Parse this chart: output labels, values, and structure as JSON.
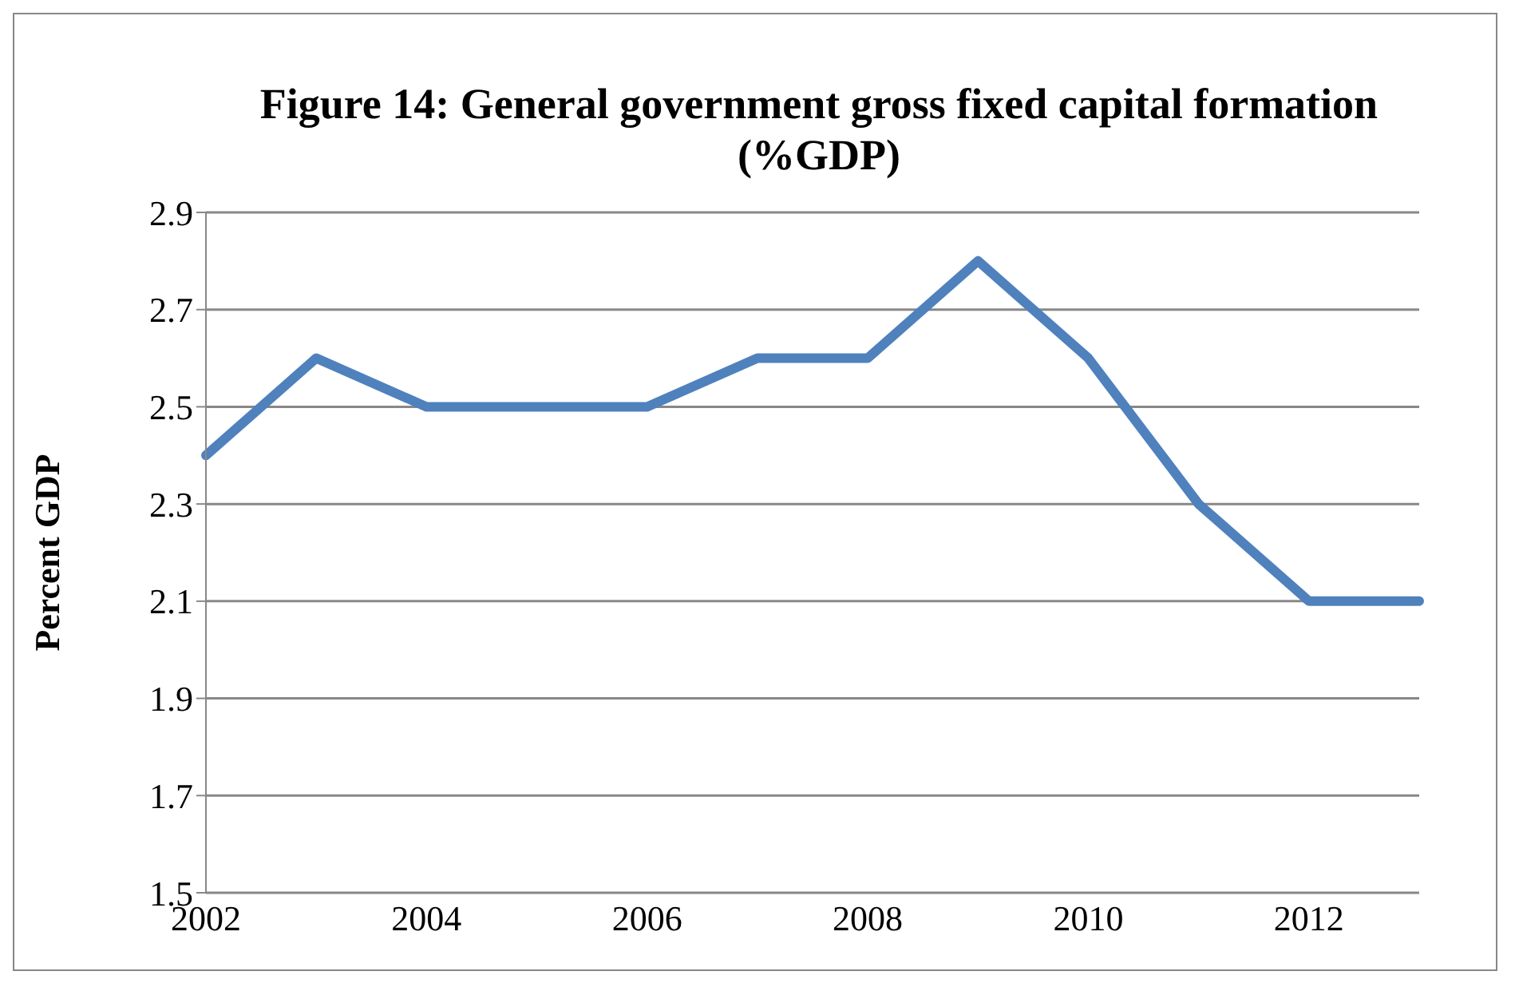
{
  "chart_data": {
    "type": "line",
    "title": "Figure 14: General government gross fixed capital formation (%GDP)",
    "ylabel": "Percent GDP",
    "categories": [
      "2002",
      null,
      "2004",
      null,
      "2006",
      null,
      "2008",
      null,
      "2010",
      null,
      "2012",
      null
    ],
    "series": [
      {
        "color": "#4f81bd",
        "values": [
          2.4,
          2.6,
          2.5,
          2.5,
          2.5,
          2.6,
          2.6,
          2.8,
          2.6,
          2.3,
          2.1,
          2.1
        ]
      }
    ],
    "ylim": [
      1.5,
      2.9
    ],
    "yticks": [
      1.5,
      1.7,
      1.9,
      2.1,
      2.3,
      2.5,
      2.7,
      2.9
    ],
    "grid": "y",
    "marker": "none",
    "line_style": "solid",
    "legend": false
  }
}
